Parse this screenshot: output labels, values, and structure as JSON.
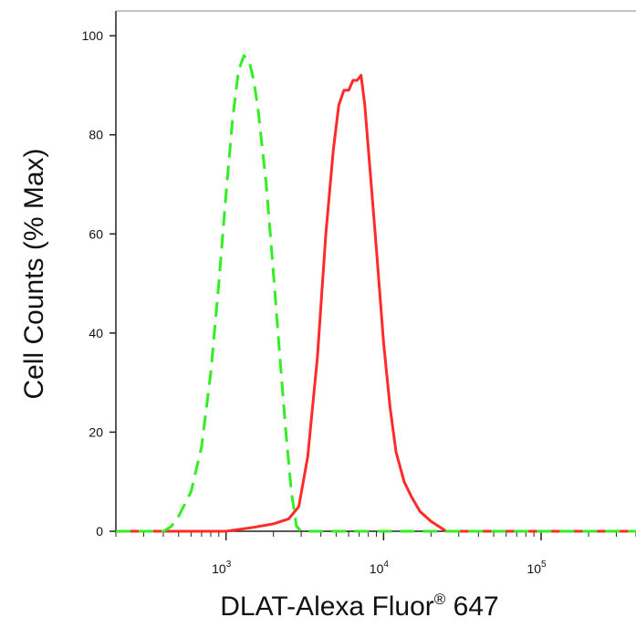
{
  "chart_data": {
    "type": "line",
    "title": "",
    "xlabel": "DLAT-Alexa Fluor",
    "xlabel_sup": "®",
    "xlabel_suffix": " 647",
    "ylabel": "Cell Counts (% Max)",
    "x_scale": "log",
    "xlim": [
      200,
      400000
    ],
    "ylim": [
      0,
      105
    ],
    "grid": false,
    "x_tick_labels": [
      {
        "value": 1000,
        "base": "10",
        "exp": "3"
      },
      {
        "value": 10000,
        "base": "10",
        "exp": "4"
      },
      {
        "value": 100000,
        "base": "10",
        "exp": "5"
      }
    ],
    "y_ticks": [
      0,
      20,
      40,
      60,
      80,
      100
    ],
    "y_tick_labels": [
      "0",
      "20",
      "40",
      "60",
      "80",
      "100"
    ],
    "series": [
      {
        "color": "#ff2a2a",
        "dash": "solid",
        "points": [
          [
            200,
            0
          ],
          [
            1000,
            0
          ],
          [
            1500,
            0.8
          ],
          [
            2000,
            1.5
          ],
          [
            2500,
            2.5
          ],
          [
            2900,
            5
          ],
          [
            3300,
            15
          ],
          [
            3800,
            35
          ],
          [
            4300,
            60
          ],
          [
            4800,
            77
          ],
          [
            5200,
            86
          ],
          [
            5600,
            89
          ],
          [
            6000,
            89
          ],
          [
            6400,
            91
          ],
          [
            6800,
            91
          ],
          [
            7200,
            92
          ],
          [
            7600,
            86
          ],
          [
            8200,
            73
          ],
          [
            9000,
            57
          ],
          [
            10000,
            38
          ],
          [
            11000,
            25
          ],
          [
            12000,
            16
          ],
          [
            13500,
            10
          ],
          [
            15000,
            7
          ],
          [
            17000,
            4
          ],
          [
            20000,
            2
          ],
          [
            25000,
            0
          ],
          [
            400000,
            0
          ]
        ]
      },
      {
        "color": "#33ee22",
        "dash": "dashed",
        "points": [
          [
            200,
            0
          ],
          [
            400,
            0
          ],
          [
            450,
            1
          ],
          [
            500,
            3
          ],
          [
            600,
            8
          ],
          [
            700,
            17
          ],
          [
            800,
            32
          ],
          [
            900,
            50
          ],
          [
            1000,
            68
          ],
          [
            1100,
            83
          ],
          [
            1200,
            93
          ],
          [
            1300,
            96
          ],
          [
            1400,
            95
          ],
          [
            1500,
            91
          ],
          [
            1600,
            85
          ],
          [
            1800,
            70
          ],
          [
            2000,
            52
          ],
          [
            2200,
            35
          ],
          [
            2400,
            20
          ],
          [
            2600,
            8
          ],
          [
            2800,
            1
          ],
          [
            3000,
            0
          ],
          [
            400000,
            0
          ]
        ]
      }
    ]
  }
}
